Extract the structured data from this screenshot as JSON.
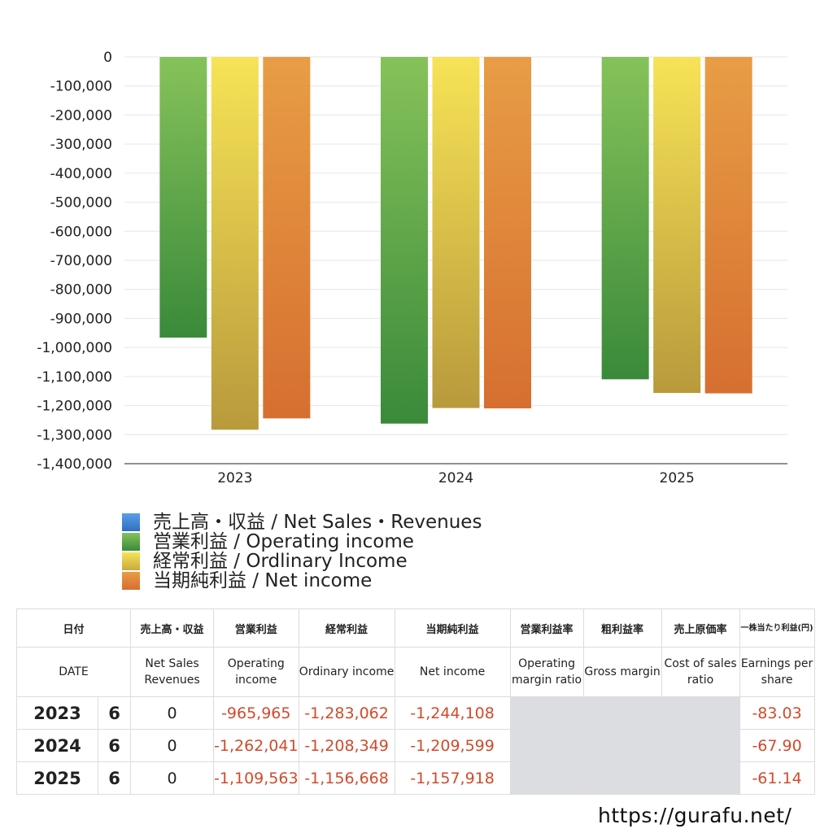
{
  "chart_data": {
    "type": "bar",
    "categories": [
      "2023",
      "2024",
      "2025"
    ],
    "series": [
      {
        "name": "売上高・収益 / Net Sales・Revenues",
        "values": [
          0,
          0,
          0
        ],
        "color": "#3b82d6"
      },
      {
        "name": "営業利益 / Operating income",
        "values": [
          -965965,
          -1262041,
          -1109563
        ],
        "color": "#4ea24a"
      },
      {
        "name": "経常利益 / Ordlinary Income",
        "values": [
          -1283062,
          -1208349,
          -1156668
        ],
        "color": "#dcc545"
      },
      {
        "name": "当期純利益 / Net income",
        "values": [
          -1244108,
          -1209599,
          -1157918
        ],
        "color": "#e08a35"
      }
    ],
    "ylim": [
      -1400000,
      0
    ],
    "yticks": [
      0,
      -100000,
      -200000,
      -300000,
      -400000,
      -500000,
      -600000,
      -700000,
      -800000,
      -900000,
      -1000000,
      -1100000,
      -1200000,
      -1300000,
      -1400000
    ],
    "ytick_labels": [
      "0",
      "-100,000",
      "-200,000",
      "-300,000",
      "-400,000",
      "-500,000",
      "-600,000",
      "-700,000",
      "-800,000",
      "-900,000",
      "-1,000,000",
      "-1,100,000",
      "-1,200,000",
      "-1,300,000",
      "-1,400,000"
    ],
    "grid": true,
    "legend": "bottom-left"
  },
  "legend": [
    {
      "label": "売上高・収益 / Net Sales・Revenues",
      "color": "#3b82d6"
    },
    {
      "label": "営業利益 / Operating income",
      "color": "#4ea24a"
    },
    {
      "label": "経常利益 / Ordlinary Income",
      "color": "#dcc545"
    },
    {
      "label": "当期純利益 / Net income",
      "color": "#e08a35"
    }
  ],
  "table": {
    "headers_jp": {
      "date": "日付",
      "sales": "売上高・収益",
      "operating": "営業利益",
      "ordinary": "経常利益",
      "net": "当期純利益",
      "op_margin": "営業利益率",
      "gross": "粗利益率",
      "cost": "売上原価率",
      "eps": "一株当たり利益(円)"
    },
    "headers_en": {
      "date": "DATE",
      "sales": "Net Sales Revenues",
      "operating": "Operating income",
      "ordinary": "Ordinary income",
      "net": "Net income",
      "op_margin": "Operating margin ratio",
      "gross": "Gross margin",
      "cost": "Cost of sales ratio",
      "eps": "Earnings per share"
    },
    "rows": [
      {
        "year": "2023",
        "month": "6",
        "sales": "0",
        "operating": "-965,965",
        "ordinary": "-1,283,062",
        "net": "-1,244,108",
        "op_margin": "",
        "gross": "",
        "cost": "",
        "eps": "-83.03"
      },
      {
        "year": "2024",
        "month": "6",
        "sales": "0",
        "operating": "-1,262,041",
        "ordinary": "-1,208,349",
        "net": "-1,209,599",
        "op_margin": "",
        "gross": "",
        "cost": "",
        "eps": "-67.90"
      },
      {
        "year": "2025",
        "month": "6",
        "sales": "0",
        "operating": "-1,109,563",
        "ordinary": "-1,156,668",
        "net": "-1,157,918",
        "op_margin": "",
        "gross": "",
        "cost": "",
        "eps": "-61.14"
      }
    ]
  },
  "source": "https://gurafu.net/"
}
